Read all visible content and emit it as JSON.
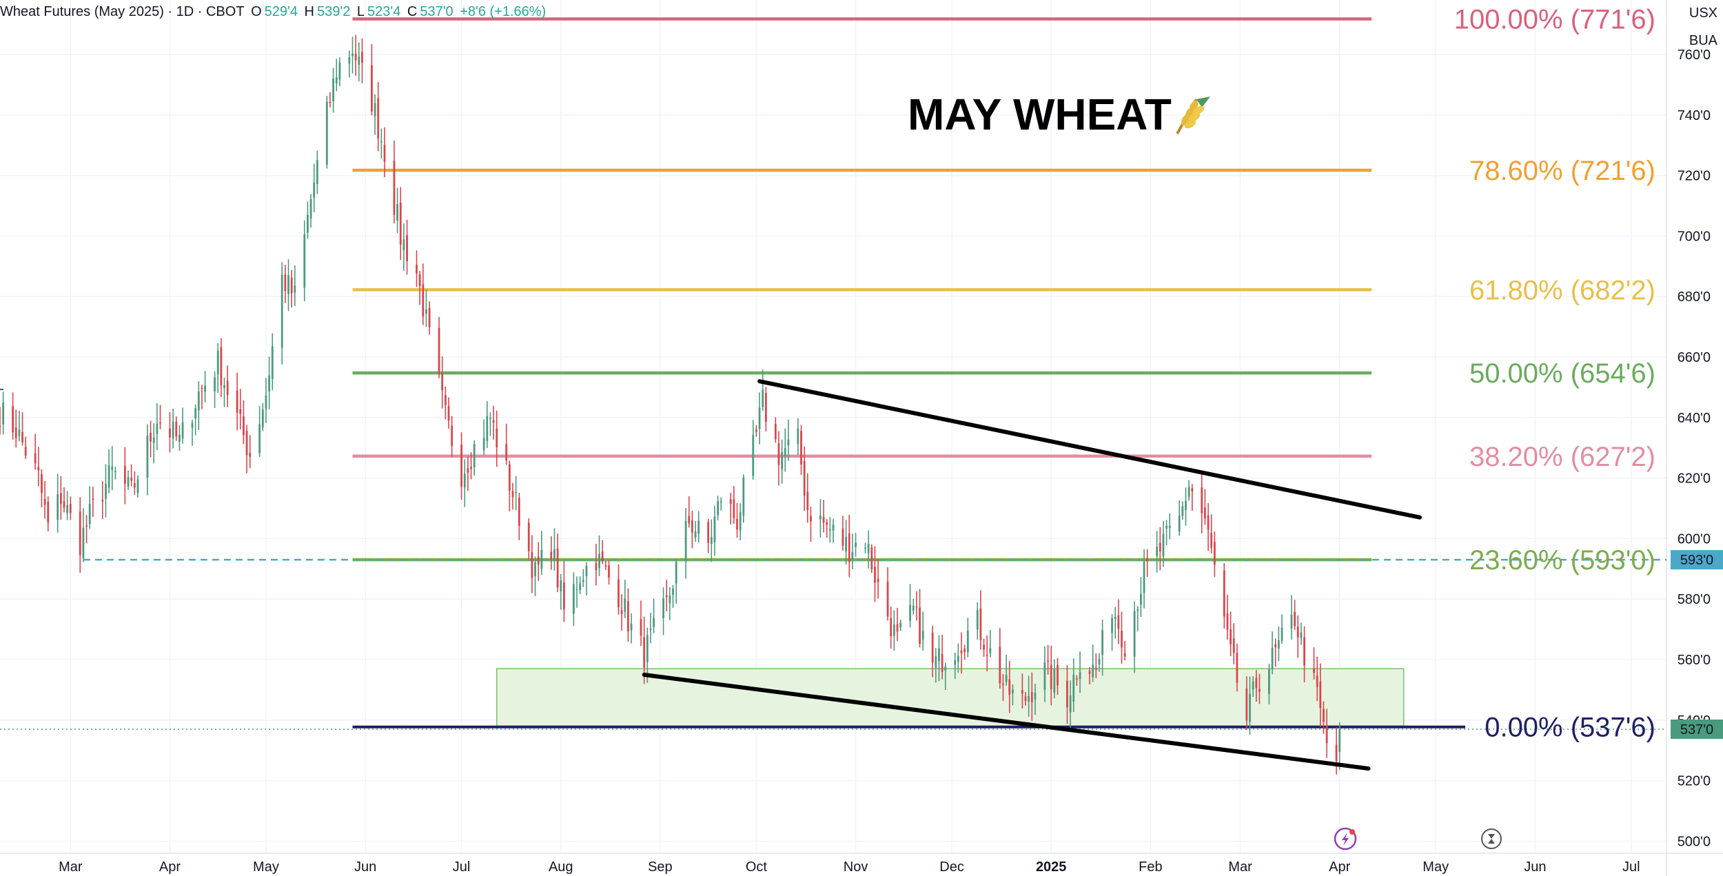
{
  "header": {
    "symbol": "Wheat Futures (May 2025) · 1D · CBOT",
    "o_label": "O",
    "o_value": "529'4",
    "h_label": "H",
    "h_value": "539'2",
    "l_label": "L",
    "l_value": "523'4",
    "c_label": "C",
    "c_value": "537'0",
    "change": "+8'6 (+1.66%)"
  },
  "price_axis": {
    "currency": "USX",
    "unit": "BUA",
    "ticks": [
      "760'0",
      "740'0",
      "720'0",
      "700'0",
      "680'0",
      "660'0",
      "640'0",
      "620'0",
      "600'0",
      "580'0",
      "560'0",
      "540'0",
      "520'0",
      "500'0"
    ],
    "badge_dashed_level": "593'0",
    "badge_last_price": "537'0"
  },
  "colors": {
    "up": "#4a9a7e",
    "down": "#d9454b",
    "fib_100": "#d9627a",
    "fib_786": "#f0a030",
    "fib_618": "#e8c048",
    "fib_50": "#6aab5f",
    "fib_382": "#e28ea0",
    "fib_236": "#7cad4e",
    "fib_0": "#1f1f66",
    "dashed_level": "#4aa8c8",
    "zone_fill": "#e6f3df",
    "zone_stroke": "#7bbf6a"
  },
  "chart_data": {
    "type": "candlestick",
    "title": "MAY WHEAT",
    "title_icon": "wheat-icon",
    "instrument": "Wheat Futures (May 2025)",
    "y_range": [
      496,
      778
    ],
    "x_range": [
      "2024-02-08",
      "2025-07-12"
    ],
    "x_ticks": [
      {
        "label": "Mar",
        "date": "2024-03-01"
      },
      {
        "label": "Apr",
        "date": "2024-04-01"
      },
      {
        "label": "May",
        "date": "2024-05-01"
      },
      {
        "label": "Jun",
        "date": "2024-06-01"
      },
      {
        "label": "Jul",
        "date": "2024-07-01"
      },
      {
        "label": "Aug",
        "date": "2024-08-01"
      },
      {
        "label": "Sep",
        "date": "2024-09-01"
      },
      {
        "label": "Oct",
        "date": "2024-10-01"
      },
      {
        "label": "Nov",
        "date": "2024-11-01"
      },
      {
        "label": "Dec",
        "date": "2024-12-01"
      },
      {
        "label": "2025",
        "date": "2025-01-01",
        "bold": true
      },
      {
        "label": "Feb",
        "date": "2025-02-01"
      },
      {
        "label": "Mar",
        "date": "2025-03-01"
      },
      {
        "label": "Apr",
        "date": "2025-04-01"
      },
      {
        "label": "May",
        "date": "2025-05-01"
      },
      {
        "label": "Jun",
        "date": "2025-06-01"
      },
      {
        "label": "Jul",
        "date": "2025-07-01"
      }
    ],
    "price_anchors": [
      [
        "2024-02-08",
        642
      ],
      [
        "2024-02-13",
        636
      ],
      [
        "2024-02-20",
        620
      ],
      [
        "2024-02-23",
        604
      ],
      [
        "2024-02-27",
        614
      ],
      [
        "2024-03-04",
        599
      ],
      [
        "2024-03-08",
        610
      ],
      [
        "2024-03-14",
        622
      ],
      [
        "2024-03-20",
        615
      ],
      [
        "2024-03-28",
        640
      ],
      [
        "2024-04-04",
        632
      ],
      [
        "2024-04-10",
        648
      ],
      [
        "2024-04-16",
        658
      ],
      [
        "2024-04-22",
        640
      ],
      [
        "2024-04-26",
        628
      ],
      [
        "2024-05-01",
        648
      ],
      [
        "2024-05-06",
        686
      ],
      [
        "2024-05-10",
        680
      ],
      [
        "2024-05-15",
        712
      ],
      [
        "2024-05-20",
        740
      ],
      [
        "2024-05-23",
        755
      ],
      [
        "2024-05-28",
        762
      ],
      [
        "2024-06-03",
        745
      ],
      [
        "2024-06-07",
        728
      ],
      [
        "2024-06-12",
        700
      ],
      [
        "2024-06-17",
        688
      ],
      [
        "2024-06-21",
        666
      ],
      [
        "2024-06-26",
        640
      ],
      [
        "2024-07-01",
        622
      ],
      [
        "2024-07-05",
        630
      ],
      [
        "2024-07-10",
        640
      ],
      [
        "2024-07-15",
        622
      ],
      [
        "2024-07-19",
        608
      ],
      [
        "2024-07-24",
        588
      ],
      [
        "2024-07-29",
        598
      ],
      [
        "2024-08-02",
        576
      ],
      [
        "2024-08-07",
        588
      ],
      [
        "2024-08-12",
        594
      ],
      [
        "2024-08-19",
        582
      ],
      [
        "2024-08-23",
        570
      ],
      [
        "2024-08-27",
        562
      ],
      [
        "2024-09-03",
        578
      ],
      [
        "2024-09-10",
        606
      ],
      [
        "2024-09-16",
        598
      ],
      [
        "2024-09-20",
        614
      ],
      [
        "2024-09-25",
        606
      ],
      [
        "2024-10-01",
        634
      ],
      [
        "2024-10-03",
        645
      ],
      [
        "2024-10-08",
        628
      ],
      [
        "2024-10-14",
        632
      ],
      [
        "2024-10-17",
        610
      ],
      [
        "2024-10-23",
        604
      ],
      [
        "2024-10-30",
        597
      ],
      [
        "2024-11-04",
        600
      ],
      [
        "2024-11-08",
        584
      ],
      [
        "2024-11-14",
        566
      ],
      [
        "2024-11-19",
        576
      ],
      [
        "2024-11-25",
        558
      ],
      [
        "2024-12-02",
        564
      ],
      [
        "2024-12-09",
        572
      ],
      [
        "2024-12-13",
        562
      ],
      [
        "2024-12-18",
        550
      ],
      [
        "2024-12-23",
        546
      ],
      [
        "2024-12-30",
        556
      ],
      [
        "2025-01-06",
        548
      ],
      [
        "2025-01-10",
        560
      ],
      [
        "2025-01-15",
        556
      ],
      [
        "2025-01-20",
        578
      ],
      [
        "2025-01-24",
        566
      ],
      [
        "2025-01-30",
        588
      ],
      [
        "2025-02-05",
        598
      ],
      [
        "2025-02-10",
        606
      ],
      [
        "2025-02-13",
        618
      ],
      [
        "2025-02-18",
        606
      ],
      [
        "2025-02-21",
        590
      ],
      [
        "2025-02-25",
        566
      ],
      [
        "2025-03-03",
        540
      ],
      [
        "2025-03-06",
        552
      ],
      [
        "2025-03-11",
        560
      ],
      [
        "2025-03-14",
        566
      ],
      [
        "2025-03-18",
        574
      ],
      [
        "2025-03-21",
        562
      ],
      [
        "2025-03-25",
        548
      ],
      [
        "2025-03-28",
        532
      ],
      [
        "2025-03-31",
        527
      ],
      [
        "2025-04-01",
        537
      ]
    ],
    "last_bar": {
      "open": "529'4",
      "high": "539'2",
      "low": "523'4",
      "close": "537'0"
    },
    "fibonacci": {
      "start_date": "2024-05-28",
      "end_date": "2025-04-11",
      "levels": [
        {
          "pct": "100.00%",
          "price_label": "771'6",
          "value": 771.75,
          "color_key": "fib_100"
        },
        {
          "pct": "78.60%",
          "price_label": "721'6",
          "value": 721.75,
          "color_key": "fib_786"
        },
        {
          "pct": "61.80%",
          "price_label": "682'2",
          "value": 682.25,
          "color_key": "fib_618"
        },
        {
          "pct": "50.00%",
          "price_label": "654'6",
          "value": 654.75,
          "color_key": "fib_50"
        },
        {
          "pct": "38.20%",
          "price_label": "627'2",
          "value": 627.25,
          "color_key": "fib_382"
        },
        {
          "pct": "23.60%",
          "price_label": "593'0",
          "value": 593.0,
          "color_key": "fib_236"
        },
        {
          "pct": "0.00%",
          "price_label": "537'6",
          "value": 537.75,
          "color_key": "fib_0"
        }
      ]
    },
    "horizontal_dashed_level": {
      "value": 593.0,
      "from_date": "2024-03-05"
    },
    "last_price_dotted": {
      "value": 537.0
    },
    "trendlines": [
      {
        "name": "upper-trendline",
        "from": [
          "2024-10-02",
          652
        ],
        "to": [
          "2025-04-26",
          607
        ]
      },
      {
        "name": "lower-trendline",
        "from": [
          "2024-08-27",
          555
        ],
        "to": [
          "2025-04-10",
          524
        ]
      }
    ],
    "support_zone": {
      "from_date": "2024-07-12",
      "to_date": "2025-04-21",
      "low": 538,
      "high": 557
    }
  }
}
